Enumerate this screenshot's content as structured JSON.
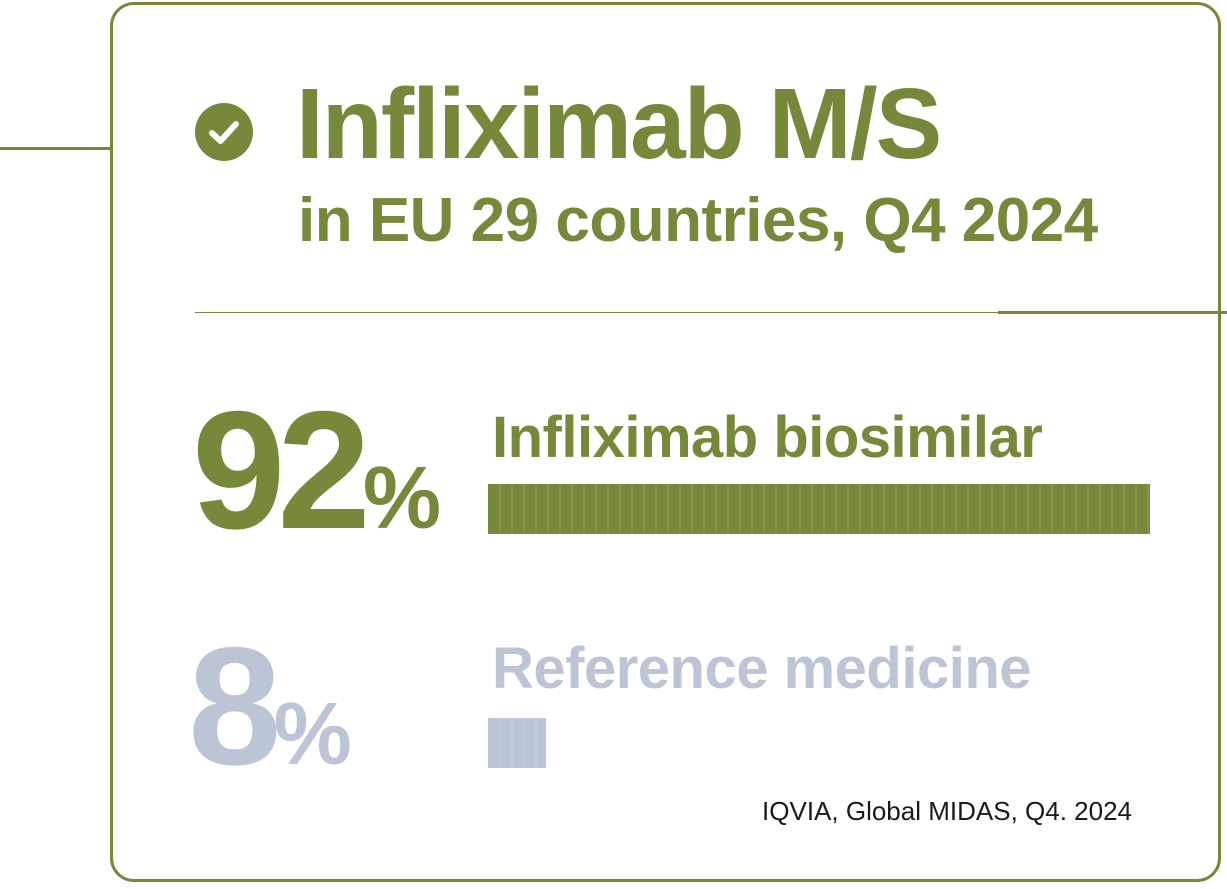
{
  "colors": {
    "accent": "#76883a",
    "muted": "#bbc5d5",
    "text": "#1a1a1a",
    "background": "#ffffff"
  },
  "header": {
    "icon": "check-circle-icon",
    "title": "Infliximab M/S",
    "subtitle": "in EU 29 countries, Q4 2024"
  },
  "chart_data": {
    "type": "bar",
    "orientation": "horizontal",
    "unit": "%",
    "categories": [
      "Infliximab biosimilar",
      "Reference medicine"
    ],
    "values": [
      92,
      8
    ],
    "value_labels": [
      "92",
      "8"
    ],
    "percent_sign": "%",
    "xlim": [
      0,
      100
    ],
    "colors": [
      "#76883a",
      "#bbc5d5"
    ]
  },
  "source": "IQVIA, Global MIDAS, Q4. 2024"
}
